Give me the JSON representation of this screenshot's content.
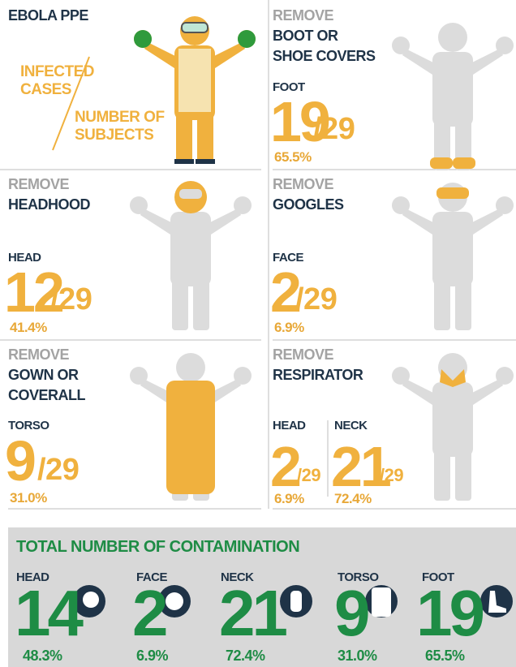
{
  "intro": {
    "title": "EBOLA PPE",
    "infected": [
      "INFECTED",
      "CASES"
    ],
    "subjects": [
      "NUMBER OF",
      "SUBJECTS"
    ]
  },
  "panels": [
    {
      "action": "REMOVE",
      "item": [
        "BOOT OR",
        "SHOE COVERS"
      ],
      "stats": [
        {
          "part": "FOOT",
          "count": 19,
          "total": "/29",
          "percent": "65.5%"
        }
      ]
    },
    {
      "action": "REMOVE",
      "item": [
        "HEADHOOD"
      ],
      "stats": [
        {
          "part": "HEAD",
          "count": 12,
          "total": "/29",
          "percent": "41.4%"
        }
      ]
    },
    {
      "action": "REMOVE",
      "item": [
        "GOOGLES"
      ],
      "stats": [
        {
          "part": "FACE",
          "count": 2,
          "total": "/29",
          "percent": "6.9%"
        }
      ]
    },
    {
      "action": "REMOVE",
      "item": [
        "GOWN OR",
        "COVERALL"
      ],
      "stats": [
        {
          "part": "TORSO",
          "count": 9,
          "total": "/29",
          "percent": "31.0%"
        }
      ]
    },
    {
      "action": "REMOVE",
      "item": [
        "RESPIRATOR"
      ],
      "stats": [
        {
          "part": "HEAD",
          "count": 2,
          "total": "/29",
          "percent": "6.9%"
        },
        {
          "part": "NECK",
          "count": 21,
          "total": "/29",
          "percent": "72.4%"
        }
      ]
    }
  ],
  "summary": {
    "title": "TOTAL NUMBER OF CONTAMINATION",
    "items": [
      {
        "part": "HEAD",
        "count": 14,
        "percent": "48.3%"
      },
      {
        "part": "FACE",
        "count": 2,
        "percent": "6.9%"
      },
      {
        "part": "NECK",
        "count": 21,
        "percent": "72.4%"
      },
      {
        "part": "TORSO",
        "count": 9,
        "percent": "31.0%"
      },
      {
        "part": "FOOT",
        "count": 19,
        "percent": "65.5%"
      }
    ]
  }
}
